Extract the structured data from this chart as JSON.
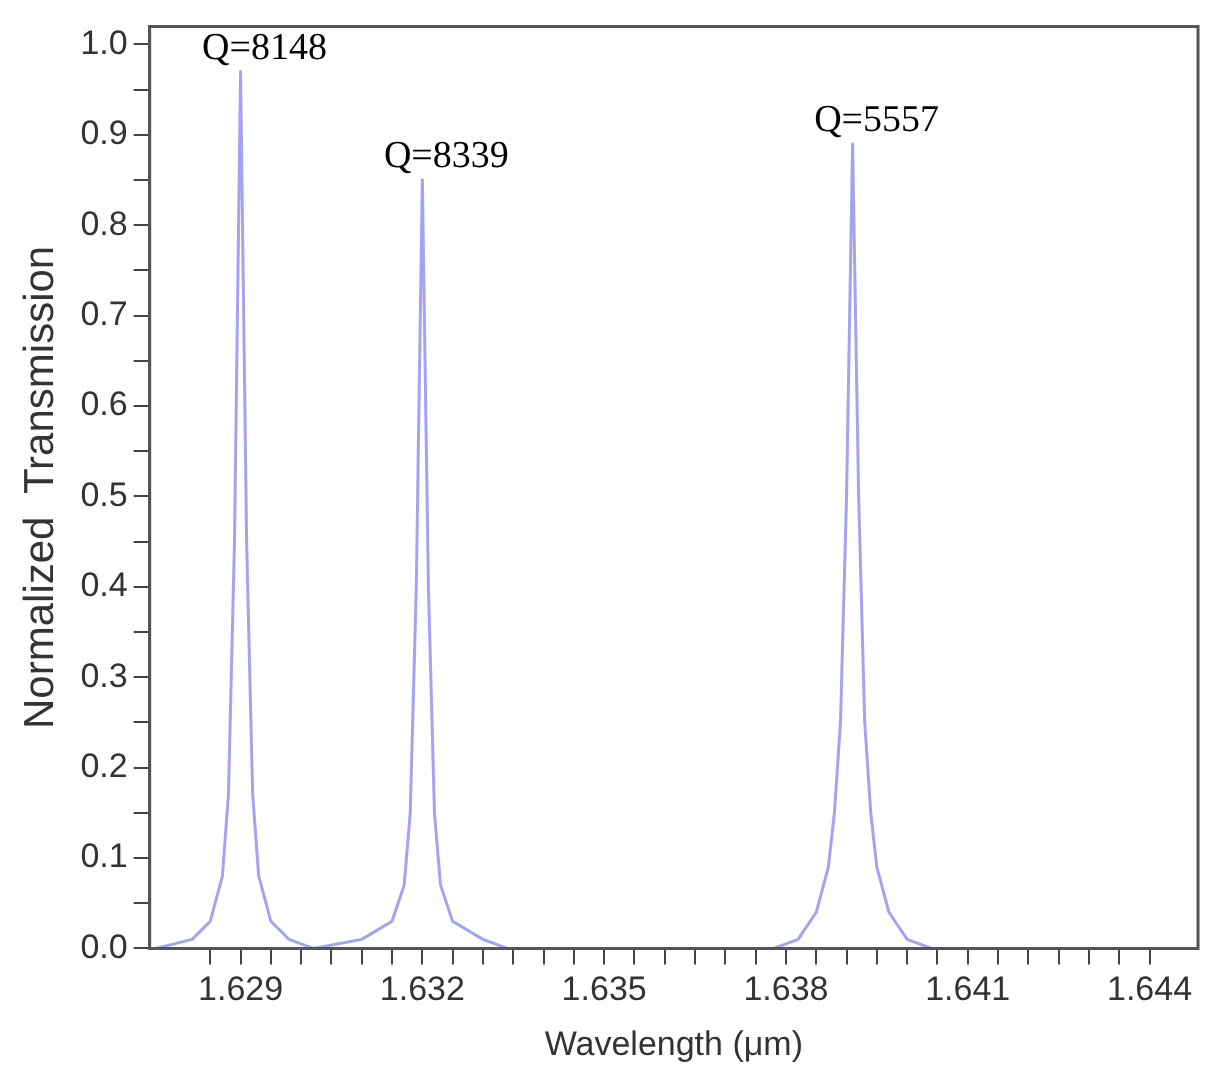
{
  "chart_data": {
    "type": "line",
    "xlabel": "Wavelength (μm)",
    "ylabel": "Normalized  Transmission",
    "xlim": [
      1.6275,
      1.6448
    ],
    "xticks": [
      {
        "value": 1.6285,
        "label": null
      },
      1.629,
      {
        "value": 1.6295,
        "label": null
      },
      {
        "value": 1.63,
        "label": null
      },
      {
        "value": 1.6305,
        "label": null
      },
      {
        "value": 1.631,
        "label": null
      },
      {
        "value": 1.6315,
        "label": null
      },
      1.632,
      {
        "value": 1.6325,
        "label": null
      },
      {
        "value": 1.633,
        "label": null
      },
      {
        "value": 1.6335,
        "label": null
      },
      {
        "value": 1.634,
        "label": null
      },
      {
        "value": 1.6345,
        "label": null
      },
      1.635,
      {
        "value": 1.6355,
        "label": null
      },
      {
        "value": 1.636,
        "label": null
      },
      {
        "value": 1.6365,
        "label": null
      },
      {
        "value": 1.637,
        "label": null
      },
      {
        "value": 1.6375,
        "label": null
      },
      1.638,
      {
        "value": 1.6385,
        "label": null
      },
      {
        "value": 1.639,
        "label": null
      },
      {
        "value": 1.6395,
        "label": null
      },
      {
        "value": 1.64,
        "label": null
      },
      {
        "value": 1.6405,
        "label": null
      },
      1.641,
      {
        "value": 1.6415,
        "label": null
      },
      {
        "value": 1.642,
        "label": null
      },
      {
        "value": 1.6425,
        "label": null
      },
      {
        "value": 1.643,
        "label": null
      },
      {
        "value": 1.6435,
        "label": null
      },
      1.644
    ],
    "ylim": [
      0,
      1.02
    ],
    "yticks": [
      "0.0",
      {
        "value": 0.05,
        "label": null
      },
      {
        "value": 0.1,
        "label": "0.1"
      },
      {
        "value": 0.15,
        "label": null
      },
      {
        "value": 0.2,
        "label": "0.2"
      },
      {
        "value": 0.25,
        "label": null
      },
      {
        "value": 0.3,
        "label": "0.3"
      },
      {
        "value": 0.35,
        "label": null
      },
      {
        "value": 0.4,
        "label": "0.4"
      },
      {
        "value": 0.45,
        "label": null
      },
      {
        "value": 0.5,
        "label": "0.5"
      },
      {
        "value": 0.55,
        "label": null
      },
      {
        "value": 0.6,
        "label": "0.6"
      },
      {
        "value": 0.65,
        "label": null
      },
      {
        "value": 0.7,
        "label": "0.7"
      },
      {
        "value": 0.75,
        "label": null
      },
      {
        "value": 0.8,
        "label": "0.8"
      },
      {
        "value": 0.85,
        "label": null
      },
      {
        "value": 0.9,
        "label": "0.9"
      },
      {
        "value": 0.95,
        "label": null
      },
      {
        "value": 1,
        "label": "1.0"
      }
    ],
    "marker": "none",
    "series": [
      {
        "color": "#a3a3f2",
        "x": [
          1.6276,
          1.6282,
          1.6285,
          1.6287,
          1.6288,
          1.6289,
          1.629,
          1.6291,
          1.6292,
          1.6293,
          1.6295,
          1.6298,
          1.6302,
          1.631,
          1.6315,
          1.6317,
          1.6318,
          1.6319,
          1.632,
          1.6321,
          1.6322,
          1.6323,
          1.6325,
          1.633,
          1.6334,
          1.6378,
          1.6382,
          1.6385,
          1.6387,
          1.6388,
          1.6389,
          1.639,
          1.6391,
          1.6392,
          1.6393,
          1.6394,
          1.6395,
          1.6397,
          1.64,
          1.6404
        ],
        "values": [
          0,
          0.01,
          0.03,
          0.08,
          0.17,
          0.45,
          0.97,
          0.45,
          0.17,
          0.08,
          0.03,
          0.01,
          0,
          0.01,
          0.03,
          0.07,
          0.15,
          0.4,
          0.85,
          0.4,
          0.15,
          0.07,
          0.03,
          0.01,
          0,
          0,
          0.01,
          0.04,
          0.09,
          0.15,
          0.25,
          0.5,
          0.89,
          0.5,
          0.25,
          0.15,
          0.09,
          0.04,
          0.01,
          0
        ]
      }
    ],
    "annotations": [
      {
        "text": "Q=8148",
        "x": 1.629,
        "y": 0.97
      },
      {
        "text": "Q=8339",
        "x": 1.632,
        "y": 0.85
      },
      {
        "text": "Q=5557",
        "x": 1.6391,
        "y": 0.89
      }
    ]
  }
}
